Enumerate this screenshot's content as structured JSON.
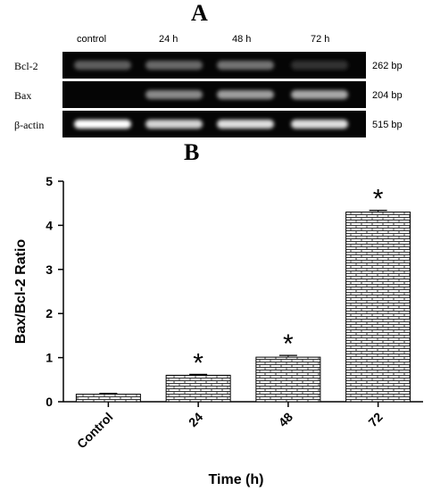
{
  "panel_a": {
    "letter": "A",
    "lanes": [
      "control",
      "24 h",
      "48 h",
      "72 h"
    ],
    "rows": [
      {
        "label": "Bcl-2",
        "bp": "262 bp",
        "intensity": [
          0.25,
          0.3,
          0.35,
          0.05
        ]
      },
      {
        "label": "Bax",
        "bp": "204 bp",
        "intensity": [
          0.0,
          0.45,
          0.55,
          0.6
        ]
      },
      {
        "label": "β-actin",
        "bp": "515 bp",
        "intensity": [
          1.0,
          0.8,
          0.85,
          0.85
        ]
      }
    ]
  },
  "panel_b": {
    "letter": "B"
  },
  "chart_data": {
    "type": "bar",
    "categories": [
      "Control",
      "24",
      "48",
      "72"
    ],
    "values": [
      0.17,
      0.6,
      1.01,
      4.3
    ],
    "errors": [
      0.02,
      0.02,
      0.04,
      0.04
    ],
    "significance": [
      "",
      "*",
      "*",
      "*"
    ],
    "xlabel": "Time (h)",
    "ylabel": "Bax/Bcl-2 Ratio",
    "ylim": [
      0,
      5
    ],
    "yticks": [
      0,
      1,
      2,
      3,
      4,
      5
    ],
    "grid": false,
    "bar_fill": "brick-pattern",
    "colors": {
      "bar_stroke": "#000000",
      "pattern": "#333333"
    }
  }
}
